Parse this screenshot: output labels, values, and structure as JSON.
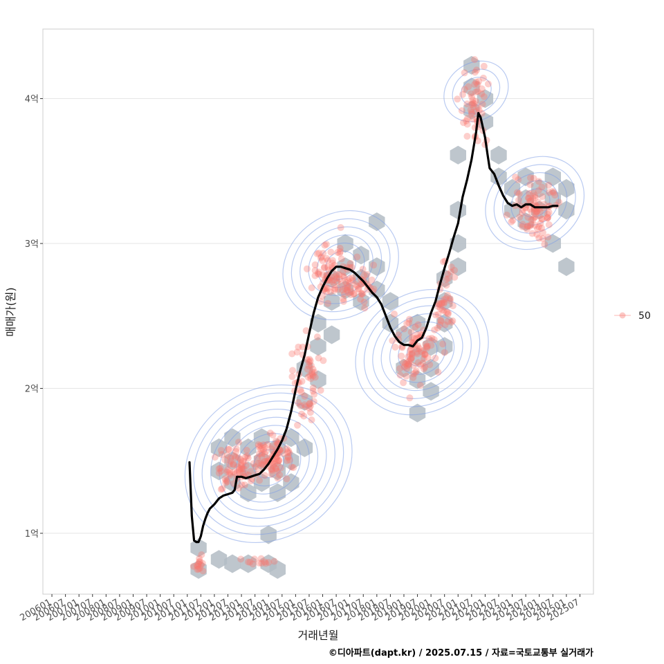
{
  "chart_data": {
    "type": "scatter",
    "xlabel": "거래년월",
    "ylabel": "매매가(원)",
    "caption": "©디아파트(dapt.kr) / 2025.07.15 / 자료=국토교통부 실거래가",
    "x_tick_labels": [
      "200601",
      "200607",
      "200701",
      "200707",
      "200801",
      "200807",
      "200901",
      "200907",
      "201001",
      "201007",
      "201101",
      "201107",
      "201201",
      "201207",
      "201301",
      "201307",
      "201401",
      "201407",
      "201501",
      "201507",
      "201601",
      "201607",
      "201701",
      "201707",
      "201801",
      "201807",
      "201901",
      "201907",
      "202001",
      "202007",
      "202101",
      "202107",
      "202201",
      "202207",
      "202301",
      "202307",
      "202401",
      "202407",
      "202501",
      "202507"
    ],
    "y_ticks": [
      {
        "value": 1.0,
        "label": "1억"
      },
      {
        "value": 2.0,
        "label": "2억"
      },
      {
        "value": 3.0,
        "label": "3억"
      },
      {
        "value": 4.0,
        "label": "4억"
      }
    ],
    "xlim": [
      "2005-09",
      "2026-01"
    ],
    "ylim": [
      0.58,
      4.48
    ],
    "y_unit": "억원",
    "grid": true,
    "legend": {
      "placement": "right",
      "items": [
        {
          "label": "50",
          "color": "#f8766d"
        }
      ]
    },
    "colors": {
      "points": "#f8766d",
      "hex": "#b3bcc4",
      "contour": "#7f9fe6",
      "trend": "#000000",
      "panel_border": "#cccccc",
      "grid": "#e6e6e6"
    },
    "trend_series": {
      "name": "",
      "points": [
        [
          "2011-02",
          1.49
        ],
        [
          "2011-03",
          1.12
        ],
        [
          "2011-04",
          0.95
        ],
        [
          "2011-05",
          0.94
        ],
        [
          "2011-06",
          0.94
        ],
        [
          "2011-07",
          0.98
        ],
        [
          "2011-08",
          1.05
        ],
        [
          "2011-09",
          1.1
        ],
        [
          "2011-10",
          1.14
        ],
        [
          "2011-11",
          1.17
        ],
        [
          "2012-01",
          1.2
        ],
        [
          "2012-03",
          1.24
        ],
        [
          "2012-05",
          1.26
        ],
        [
          "2012-07",
          1.27
        ],
        [
          "2012-09",
          1.28
        ],
        [
          "2012-10",
          1.3
        ],
        [
          "2012-11",
          1.39
        ],
        [
          "2013-01",
          1.39
        ],
        [
          "2013-03",
          1.38
        ],
        [
          "2013-05",
          1.39
        ],
        [
          "2013-07",
          1.4
        ],
        [
          "2013-09",
          1.41
        ],
        [
          "2013-11",
          1.44
        ],
        [
          "2014-01",
          1.48
        ],
        [
          "2014-03",
          1.53
        ],
        [
          "2014-05",
          1.58
        ],
        [
          "2014-07",
          1.64
        ],
        [
          "2014-09",
          1.72
        ],
        [
          "2014-11",
          1.84
        ],
        [
          "2015-01",
          1.99
        ],
        [
          "2015-03",
          2.12
        ],
        [
          "2015-05",
          2.23
        ],
        [
          "2015-07",
          2.38
        ],
        [
          "2015-09",
          2.52
        ],
        [
          "2015-11",
          2.63
        ],
        [
          "2016-01",
          2.7
        ],
        [
          "2016-03",
          2.76
        ],
        [
          "2016-05",
          2.81
        ],
        [
          "2016-07",
          2.84
        ],
        [
          "2016-09",
          2.84
        ],
        [
          "2016-11",
          2.83
        ],
        [
          "2017-01",
          2.82
        ],
        [
          "2017-03",
          2.8
        ],
        [
          "2017-05",
          2.77
        ],
        [
          "2017-07",
          2.74
        ],
        [
          "2017-09",
          2.7
        ],
        [
          "2017-11",
          2.66
        ],
        [
          "2018-01",
          2.63
        ],
        [
          "2018-03",
          2.58
        ],
        [
          "2018-05",
          2.5
        ],
        [
          "2018-07",
          2.42
        ],
        [
          "2018-09",
          2.36
        ],
        [
          "2018-11",
          2.32
        ],
        [
          "2019-01",
          2.3
        ],
        [
          "2019-03",
          2.3
        ],
        [
          "2019-05",
          2.29
        ],
        [
          "2019-07",
          2.33
        ],
        [
          "2019-09",
          2.35
        ],
        [
          "2019-11",
          2.42
        ],
        [
          "2020-01",
          2.52
        ],
        [
          "2020-03",
          2.6
        ],
        [
          "2020-05",
          2.72
        ],
        [
          "2020-07",
          2.83
        ],
        [
          "2020-09",
          2.93
        ],
        [
          "2020-11",
          3.04
        ],
        [
          "2021-01",
          3.14
        ],
        [
          "2021-03",
          3.32
        ],
        [
          "2021-05",
          3.44
        ],
        [
          "2021-07",
          3.58
        ],
        [
          "2021-09",
          3.77
        ],
        [
          "2021-10",
          3.9
        ],
        [
          "2021-11",
          3.87
        ],
        [
          "2022-01",
          3.73
        ],
        [
          "2022-02",
          3.62
        ],
        [
          "2022-03",
          3.52
        ],
        [
          "2022-05",
          3.48
        ],
        [
          "2022-07",
          3.4
        ],
        [
          "2022-09",
          3.33
        ],
        [
          "2022-11",
          3.28
        ],
        [
          "2023-01",
          3.26
        ],
        [
          "2023-03",
          3.27
        ],
        [
          "2023-05",
          3.25
        ],
        [
          "2023-07",
          3.27
        ],
        [
          "2023-09",
          3.27
        ],
        [
          "2023-11",
          3.25
        ],
        [
          "2024-01",
          3.25
        ],
        [
          "2024-03",
          3.25
        ],
        [
          "2024-05",
          3.25
        ],
        [
          "2024-07",
          3.26
        ],
        [
          "2024-09",
          3.26
        ]
      ]
    },
    "point_clusters": [
      {
        "center": [
          "2011-06",
          0.79
        ],
        "sd": [
          0.15,
          0.04
        ],
        "n": 14
      },
      {
        "center": [
          "2013-07",
          0.8
        ],
        "sd": [
          0.6,
          0.03
        ],
        "n": 12
      },
      {
        "center": [
          "2012-11",
          1.45
        ],
        "sd": [
          0.6,
          0.12
        ],
        "n": 70
      },
      {
        "center": [
          "2014-03",
          1.52
        ],
        "sd": [
          0.55,
          0.12
        ],
        "n": 85
      },
      {
        "center": [
          "2015-06",
          2.1
        ],
        "sd": [
          0.45,
          0.25
        ],
        "n": 55
      },
      {
        "center": [
          "2016-06",
          2.8
        ],
        "sd": [
          0.6,
          0.18
        ],
        "n": 85
      },
      {
        "center": [
          "2017-06",
          2.72
        ],
        "sd": [
          0.6,
          0.15
        ],
        "n": 40
      },
      {
        "center": [
          "2019-06",
          2.25
        ],
        "sd": [
          0.55,
          0.18
        ],
        "n": 85
      },
      {
        "center": [
          "2020-07",
          2.6
        ],
        "sd": [
          0.35,
          0.25
        ],
        "n": 45
      },
      {
        "center": [
          "2021-08",
          3.95
        ],
        "sd": [
          0.35,
          0.25
        ],
        "n": 55
      },
      {
        "center": [
          "2023-10",
          3.25
        ],
        "sd": [
          0.7,
          0.18
        ],
        "n": 90
      }
    ],
    "hex_bins": [
      [
        "2011-06",
        0.9
      ],
      [
        "2011-06",
        0.75
      ],
      [
        "2012-03",
        0.82
      ],
      [
        "2012-09",
        0.79
      ],
      [
        "2013-04",
        0.79
      ],
      [
        "2014-01",
        0.79
      ],
      [
        "2014-05",
        0.75
      ],
      [
        "2014-01",
        0.99
      ],
      [
        "2012-03",
        1.43
      ],
      [
        "2012-03",
        1.59
      ],
      [
        "2012-09",
        1.35
      ],
      [
        "2012-09",
        1.5
      ],
      [
        "2012-09",
        1.66
      ],
      [
        "2013-04",
        1.28
      ],
      [
        "2013-04",
        1.43
      ],
      [
        "2013-04",
        1.59
      ],
      [
        "2013-10",
        1.35
      ],
      [
        "2013-10",
        1.5
      ],
      [
        "2013-10",
        1.66
      ],
      [
        "2014-05",
        1.28
      ],
      [
        "2014-05",
        1.43
      ],
      [
        "2014-05",
        1.59
      ],
      [
        "2014-11",
        1.35
      ],
      [
        "2014-11",
        1.5
      ],
      [
        "2014-11",
        1.66
      ],
      [
        "2015-05",
        1.59
      ],
      [
        "2015-05",
        1.91
      ],
      [
        "2015-05",
        2.14
      ],
      [
        "2015-11",
        2.06
      ],
      [
        "2015-11",
        2.29
      ],
      [
        "2015-11",
        2.45
      ],
      [
        "2016-05",
        2.37
      ],
      [
        "2016-05",
        2.6
      ],
      [
        "2016-05",
        2.76
      ],
      [
        "2016-11",
        2.68
      ],
      [
        "2016-11",
        2.84
      ],
      [
        "2016-11",
        3.0
      ],
      [
        "2017-06",
        2.6
      ],
      [
        "2017-06",
        2.76
      ],
      [
        "2017-06",
        2.92
      ],
      [
        "2018-01",
        2.68
      ],
      [
        "2018-01",
        2.84
      ],
      [
        "2018-01",
        3.15
      ],
      [
        "2018-07",
        2.45
      ],
      [
        "2018-07",
        2.6
      ],
      [
        "2019-01",
        2.14
      ],
      [
        "2019-01",
        2.37
      ],
      [
        "2019-07",
        2.06
      ],
      [
        "2019-07",
        2.22
      ],
      [
        "2019-07",
        2.45
      ],
      [
        "2019-07",
        1.83
      ],
      [
        "2020-01",
        2.14
      ],
      [
        "2020-01",
        2.29
      ],
      [
        "2020-01",
        1.98
      ],
      [
        "2020-07",
        2.29
      ],
      [
        "2020-07",
        2.45
      ],
      [
        "2020-07",
        2.6
      ],
      [
        "2020-07",
        2.76
      ],
      [
        "2021-01",
        2.84
      ],
      [
        "2021-01",
        3.0
      ],
      [
        "2021-01",
        3.23
      ],
      [
        "2021-01",
        3.61
      ],
      [
        "2021-07",
        3.92
      ],
      [
        "2021-07",
        4.08
      ],
      [
        "2021-07",
        4.23
      ],
      [
        "2022-01",
        3.84
      ],
      [
        "2022-01",
        4.0
      ],
      [
        "2022-07",
        3.46
      ],
      [
        "2022-07",
        3.61
      ],
      [
        "2023-01",
        3.38
      ],
      [
        "2023-01",
        3.23
      ],
      [
        "2023-07",
        3.31
      ],
      [
        "2023-07",
        3.46
      ],
      [
        "2023-07",
        3.15
      ],
      [
        "2024-01",
        3.23
      ],
      [
        "2024-01",
        3.38
      ],
      [
        "2024-07",
        3.31
      ],
      [
        "2024-07",
        3.46
      ],
      [
        "2024-07",
        3.0
      ],
      [
        "2025-01",
        3.23
      ],
      [
        "2025-01",
        3.38
      ],
      [
        "2025-01",
        2.84
      ]
    ],
    "density_centers": [
      {
        "center": [
          "2014-01",
          1.48
        ],
        "levels": 9
      },
      {
        "center": [
          "2016-09",
          2.85
        ],
        "levels": 6
      },
      {
        "center": [
          "2019-09",
          2.25
        ],
        "levels": 7
      },
      {
        "center": [
          "2021-09",
          4.05
        ],
        "levels": 3
      },
      {
        "center": [
          "2023-11",
          3.28
        ],
        "levels": 5
      }
    ]
  }
}
